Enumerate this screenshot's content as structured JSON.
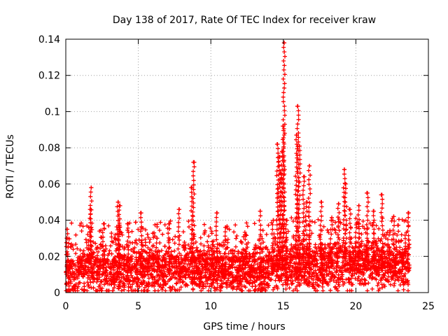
{
  "chart_data": {
    "type": "scatter",
    "title": "Day 138 of 2017, Rate Of TEC Index for receiver kraw",
    "xlabel": "GPS time / hours",
    "ylabel": "ROTI / TECUs",
    "xlim": [
      0,
      25
    ],
    "ylim": [
      0,
      0.14
    ],
    "grid": true,
    "marker": "+",
    "marker_color": "#ff0000",
    "x_ticks": [
      "0",
      "5",
      "10",
      "15",
      "20",
      "25"
    ],
    "y_ticks": [
      "0",
      "0.02",
      "0.04",
      "0.06",
      "0.08",
      "0.1",
      "0.12",
      "0.14"
    ],
    "series": [
      {
        "name": "ROTI",
        "baseline_band": [
          [
            0.0,
            0.01
          ],
          [
            1.0,
            0.012
          ],
          [
            2.0,
            0.011
          ],
          [
            3.0,
            0.011
          ],
          [
            4.0,
            0.012
          ],
          [
            5.0,
            0.011
          ],
          [
            6.0,
            0.012
          ],
          [
            7.0,
            0.012
          ],
          [
            8.0,
            0.012
          ],
          [
            9.0,
            0.012
          ],
          [
            10.0,
            0.012
          ],
          [
            11.0,
            0.012
          ],
          [
            12.0,
            0.011
          ],
          [
            13.0,
            0.011
          ],
          [
            14.0,
            0.012
          ],
          [
            15.0,
            0.013
          ],
          [
            16.0,
            0.014
          ],
          [
            17.0,
            0.014
          ],
          [
            18.0,
            0.014
          ],
          [
            19.0,
            0.015
          ],
          [
            20.0,
            0.015
          ],
          [
            21.0,
            0.015
          ],
          [
            22.0,
            0.015
          ],
          [
            23.0,
            0.014
          ],
          [
            23.7,
            0.014
          ]
        ],
        "peaks": [
          [
            0.1,
            0.035
          ],
          [
            1.6,
            0.036
          ],
          [
            1.7,
            0.046
          ],
          [
            1.75,
            0.058
          ],
          [
            2.6,
            0.038
          ],
          [
            3.6,
            0.05
          ],
          [
            3.7,
            0.048
          ],
          [
            4.3,
            0.038
          ],
          [
            5.2,
            0.044
          ],
          [
            6.3,
            0.03
          ],
          [
            7.1,
            0.038
          ],
          [
            7.8,
            0.046
          ],
          [
            8.7,
            0.058
          ],
          [
            8.8,
            0.072
          ],
          [
            10.4,
            0.044
          ],
          [
            11.0,
            0.036
          ],
          [
            12.4,
            0.032
          ],
          [
            13.4,
            0.045
          ],
          [
            14.3,
            0.04
          ],
          [
            14.6,
            0.082
          ],
          [
            14.7,
            0.075
          ],
          [
            14.8,
            0.066
          ],
          [
            14.9,
            0.078
          ],
          [
            15.0,
            0.092
          ],
          [
            15.05,
            0.138
          ],
          [
            15.2,
            0.04
          ],
          [
            15.9,
            0.087
          ],
          [
            16.0,
            0.103
          ],
          [
            16.1,
            0.081
          ],
          [
            16.4,
            0.064
          ],
          [
            16.6,
            0.05
          ],
          [
            16.8,
            0.07
          ],
          [
            17.6,
            0.05
          ],
          [
            18.3,
            0.04
          ],
          [
            18.8,
            0.049
          ],
          [
            19.2,
            0.068
          ],
          [
            19.3,
            0.06
          ],
          [
            19.6,
            0.046
          ],
          [
            20.0,
            0.041
          ],
          [
            20.2,
            0.048
          ],
          [
            20.8,
            0.055
          ],
          [
            21.2,
            0.045
          ],
          [
            21.8,
            0.054
          ],
          [
            22.6,
            0.042
          ],
          [
            23.6,
            0.044
          ]
        ]
      }
    ]
  }
}
